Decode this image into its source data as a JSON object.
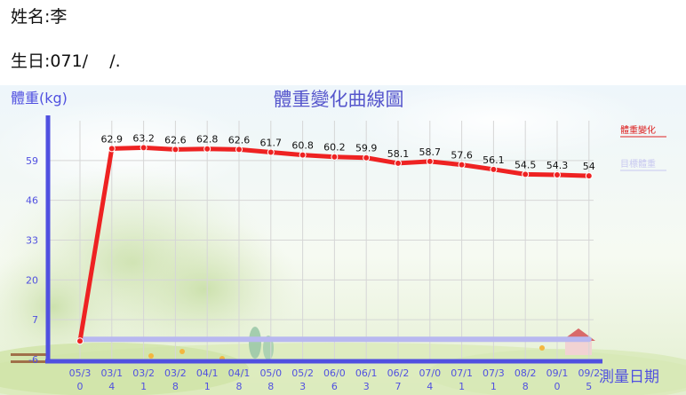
{
  "header": {
    "name_line": "姓名:李",
    "birth_line": "生日:071/    /."
  },
  "colors": {
    "weight_line": "#ee2222",
    "target_line": "#b8b8f0",
    "axis": "#5050e0",
    "title": "#5555cc",
    "legend_weight": "#dd2222",
    "legend_target": "#c8c8f0",
    "grid": "#d6d6d6"
  },
  "chart_data": {
    "type": "line",
    "title": "體重變化曲線圖",
    "ylabel": "體重(kg)",
    "xlabel": "測量日期",
    "ylim": [
      -6,
      72
    ],
    "yticks": [
      -6,
      7,
      20,
      33,
      46,
      59
    ],
    "grid": true,
    "legend_position": "right",
    "categories": [
      "05/30",
      "03/14",
      "03/21",
      "03/28",
      "04/11",
      "04/18",
      "05/08",
      "05/23",
      "06/06",
      "06/13",
      "06/27",
      "07/04",
      "07/11",
      "07/31",
      "08/28",
      "09/10",
      "09/25"
    ],
    "category_lines": [
      [
        "05/3",
        "0"
      ],
      [
        "03/1",
        "4"
      ],
      [
        "03/2",
        "1"
      ],
      [
        "03/2",
        "8"
      ],
      [
        "04/1",
        "1"
      ],
      [
        "04/1",
        "8"
      ],
      [
        "05/0",
        "8"
      ],
      [
        "05/2",
        "3"
      ],
      [
        "06/0",
        "6"
      ],
      [
        "06/1",
        "3"
      ],
      [
        "06/2",
        "7"
      ],
      [
        "07/0",
        "4"
      ],
      [
        "07/1",
        "1"
      ],
      [
        "07/3",
        "1"
      ],
      [
        "08/2",
        "8"
      ],
      [
        "09/1",
        "0"
      ],
      [
        "09/2",
        "5"
      ]
    ],
    "series": [
      {
        "name": "體重變化",
        "values": [
          0,
          62.9,
          63.2,
          62.6,
          62.8,
          62.6,
          61.7,
          60.8,
          60.2,
          59.9,
          58.1,
          58.7,
          57.6,
          56.1,
          54.5,
          54.3,
          54
        ],
        "labels": [
          "",
          "62.9",
          "63.2",
          "62.6",
          "62.8",
          "62.6",
          "61.7",
          "60.8",
          "60.2",
          "59.9",
          "58.1",
          "58.7",
          "57.6",
          "56.1",
          "54.5",
          "54.3",
          "54"
        ]
      },
      {
        "name": "目標體重",
        "values": [
          0,
          0,
          0,
          0,
          0,
          0,
          0,
          0,
          0,
          0,
          0,
          0,
          0,
          0,
          0,
          0,
          0
        ]
      }
    ]
  }
}
